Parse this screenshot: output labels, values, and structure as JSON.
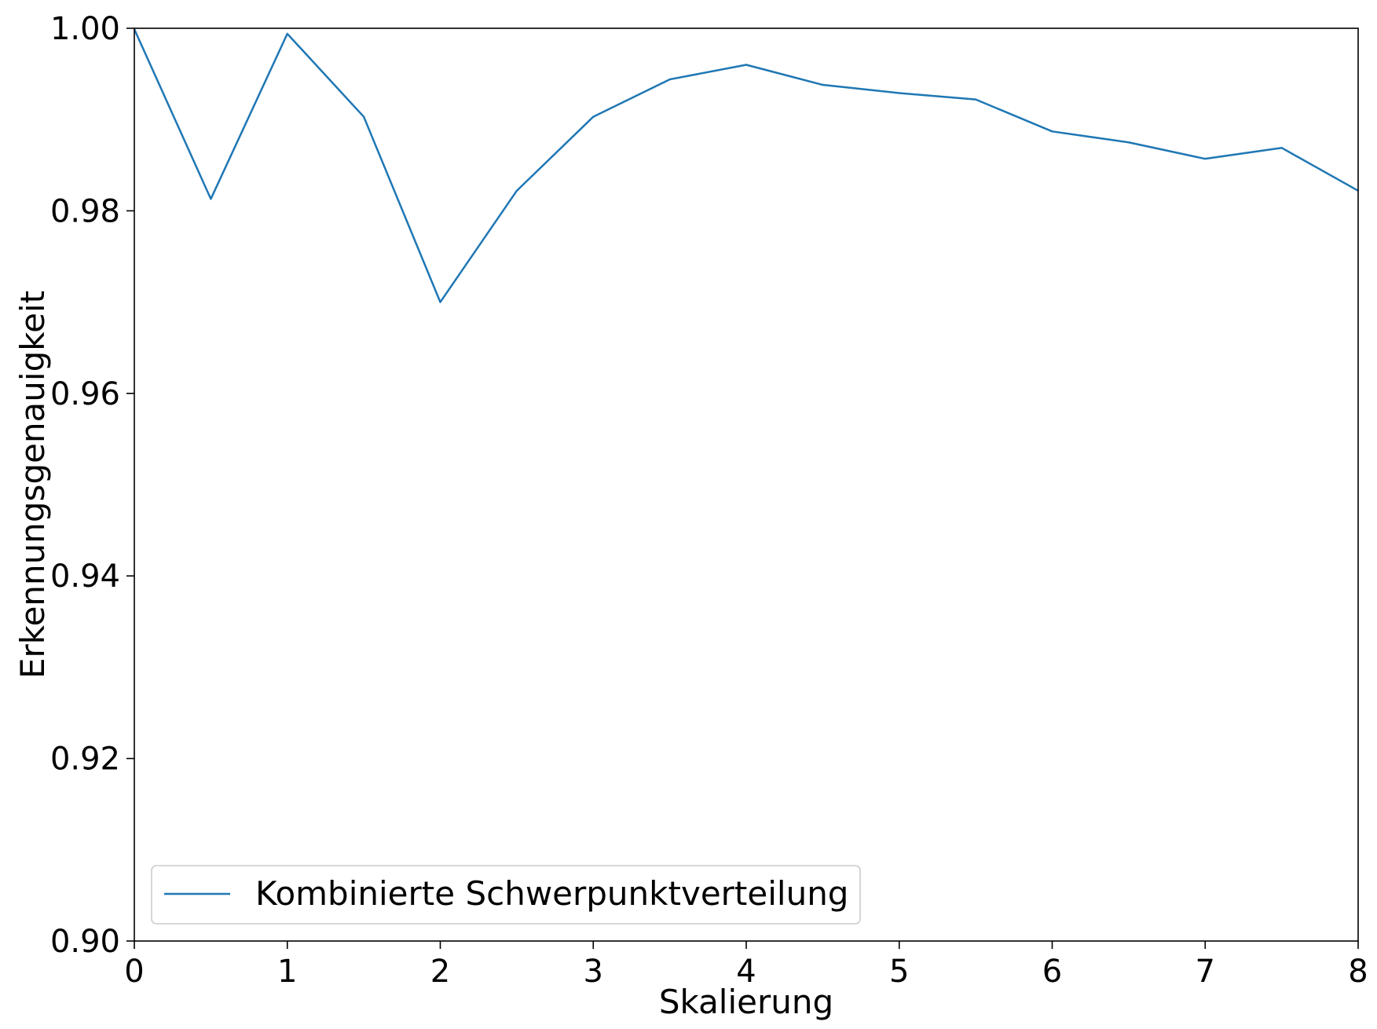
{
  "chart_data": {
    "type": "line",
    "title": "",
    "xlabel": "Skalierung",
    "ylabel": "Erkennungsgenauigkeit",
    "xlim": [
      0,
      8
    ],
    "ylim": [
      0.9,
      1.0
    ],
    "x_ticks": [
      "0",
      "1",
      "2",
      "3",
      "4",
      "5",
      "6",
      "7",
      "8"
    ],
    "y_ticks": [
      "0.90",
      "0.92",
      "0.94",
      "0.96",
      "0.98",
      "1.00"
    ],
    "grid": false,
    "legend_position": "bottom-left",
    "color": "#1f77b4",
    "series": [
      {
        "name": "Kombinierte Schwerpunktverteilung",
        "x": [
          0,
          0.5,
          1,
          1.5,
          2,
          2.5,
          3,
          3.5,
          4,
          4.5,
          5,
          5.5,
          6,
          6.5,
          7,
          7.5,
          8
        ],
        "y": [
          0.9999,
          0.9813,
          0.9994,
          0.9903,
          0.97,
          0.9822,
          0.9903,
          0.9944,
          0.996,
          0.9938,
          0.9929,
          0.9922,
          0.9887,
          0.9875,
          0.9857,
          0.9869,
          0.9822
        ]
      }
    ]
  }
}
